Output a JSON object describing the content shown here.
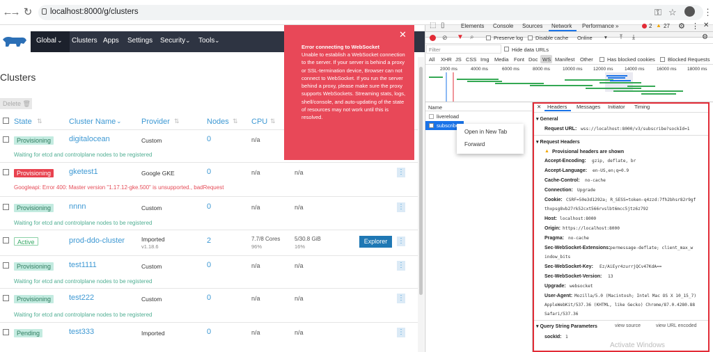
{
  "browser": {
    "url": "localhost:8000/g/clusters"
  },
  "rancher": {
    "nav": [
      "Global",
      "Clusters",
      "Apps",
      "Settings",
      "Security",
      "Tools"
    ],
    "page_title": "Clusters",
    "delete_label": "Delete",
    "columns": [
      "State",
      "Cluster Name",
      "Provider",
      "Nodes",
      "CPU"
    ],
    "rows": [
      {
        "state": "Provisioning",
        "name": "digitalocean",
        "provider": "Custom",
        "nodes": "0",
        "cpu": "n/a",
        "msg": "Waiting for etcd and controlplane nodes to be registered"
      },
      {
        "state": "Provisioning",
        "name": "gketest1",
        "provider": "Google GKE",
        "nodes": "0",
        "cpu": "n/a",
        "mem": "n/a",
        "msg": "Googleapi: Error 400: Master version \"1.17.12-gke.500\" is unsupported., badRequest"
      },
      {
        "state": "Provisioning",
        "name": "nnnn",
        "provider": "Custom",
        "nodes": "0",
        "cpu": "n/a",
        "mem": "n/a",
        "msg": "Waiting for etcd and controlplane nodes to be registered"
      },
      {
        "state": "Active",
        "name": "prod-ddo-cluster",
        "provider": "Imported",
        "provider_sub": "v1.18.6",
        "nodes": "2",
        "cpu": "7.7/8 Cores",
        "cpu_sub": "96%",
        "mem": "5/30.8 GiB",
        "mem_sub": "16%",
        "action": "Explorer"
      },
      {
        "state": "Provisioning",
        "name": "test1111",
        "provider": "Custom",
        "nodes": "0",
        "cpu": "n/a",
        "mem": "n/a",
        "msg": "Waiting for etcd and controlplane nodes to be registered"
      },
      {
        "state": "Provisioning",
        "name": "test222",
        "provider": "Custom",
        "nodes": "0",
        "cpu": "n/a",
        "mem": "n/a",
        "msg": "Waiting for etcd and controlplane nodes to be registered"
      },
      {
        "state": "Pending",
        "name": "test333",
        "provider": "Imported",
        "nodes": "0",
        "cpu": "n/a",
        "mem": "n/a"
      }
    ],
    "toast": {
      "title": "Error connecting to WebSocket",
      "body": "Unable to establish a WebSocket connection to the server. If your server is behind a proxy or SSL-termination device, Browser can not connect to WebSocket. If you run the server behind a proxy, please make sure the proxy supports WebSockets. Streaming stats, logs, shell/console, and auto-updating of the state of resources may not work until this is resolved."
    }
  },
  "devtools": {
    "tabs": [
      "Elements",
      "Console",
      "Sources",
      "Network",
      "Performance"
    ],
    "active_tab": "Network",
    "errors": "2",
    "warnings": "27",
    "preserve_log": "Preserve log",
    "disable_cache": "Disable cache",
    "throttle": "Online",
    "filter_placeholder": "Filter",
    "hide_data_urls": "Hide data URLs",
    "types": [
      "All",
      "XHR",
      "JS",
      "CSS",
      "Img",
      "Media",
      "Font",
      "Doc",
      "WS",
      "Manifest",
      "Other"
    ],
    "has_blocked_cookies": "Has blocked cookies",
    "blocked_requests": "Blocked Requests",
    "timeline_ticks": [
      "2000 ms",
      "4000 ms",
      "6000 ms",
      "8000 ms",
      "10000 ms",
      "12000 ms",
      "14000 ms",
      "16000 ms",
      "18000 ms"
    ],
    "name_col": "Name",
    "requests": [
      "livereload",
      "subscribe"
    ],
    "context_menu": [
      "Open in New Tab",
      "Forward"
    ],
    "detail_tabs": [
      "Headers",
      "Messages",
      "Initiator",
      "Timing"
    ],
    "general": {
      "title": "General",
      "request_url_label": "Request URL:",
      "request_url": "wss://localhost:8000/v3/subscribe?sockId=1"
    },
    "request_headers": {
      "title": "Request Headers",
      "provisional": "Provisional headers are shown",
      "items": [
        {
          "k": "Accept-Encoding:",
          "v": "gzip, deflate, br"
        },
        {
          "k": "Accept-Language:",
          "v": "en-US,en;q=0.9"
        },
        {
          "k": "Cache-Control:",
          "v": "no-cache"
        },
        {
          "k": "Connection:",
          "v": "Upgrade"
        },
        {
          "k": "Cookie:",
          "v": "CSRF=50e3d1292a; R_SESS=token-q4zzd:7fh2bhsr82r9gf",
          "v2": "thxpsg8vb27rk52cxt566rvslbt6mcc5jtz6z792"
        },
        {
          "k": "Host:",
          "v": "localhost:8000"
        },
        {
          "k": "Origin:",
          "v": "https://localhost:8000"
        },
        {
          "k": "Pragma:",
          "v": "no-cache"
        },
        {
          "k": "Sec-WebSocket-Extensions:",
          "v": "permessage-deflate; client_max_w",
          "v2": "indow_bits"
        },
        {
          "k": "Sec-WebSocket-Key:",
          "v": "Ez/AiEyr4zurrjQCv47KdA=="
        },
        {
          "k": "Sec-WebSocket-Version:",
          "v": "13"
        },
        {
          "k": "Upgrade:",
          "v": "websocket"
        },
        {
          "k": "User-Agent:",
          "v": "Mozilla/5.0 (Macintosh; Intel Mac OS X 10_15_7)",
          "v2": "AppleWebKit/537.36 (KHTML, like Gecko) Chrome/87.0.4280.88",
          "v3": "Safari/537.36"
        }
      ]
    },
    "query": {
      "title": "Query String Parameters",
      "view_source": "view source",
      "view_url_encoded": "view URL encoded",
      "param_k": "sockId:",
      "param_v": "1"
    }
  },
  "watermark": "Activate Windows",
  "colors": {
    "accent": "#3d98d3",
    "navbar": "#2e3442",
    "error": "#e84858",
    "highlight": "#e22b36"
  }
}
